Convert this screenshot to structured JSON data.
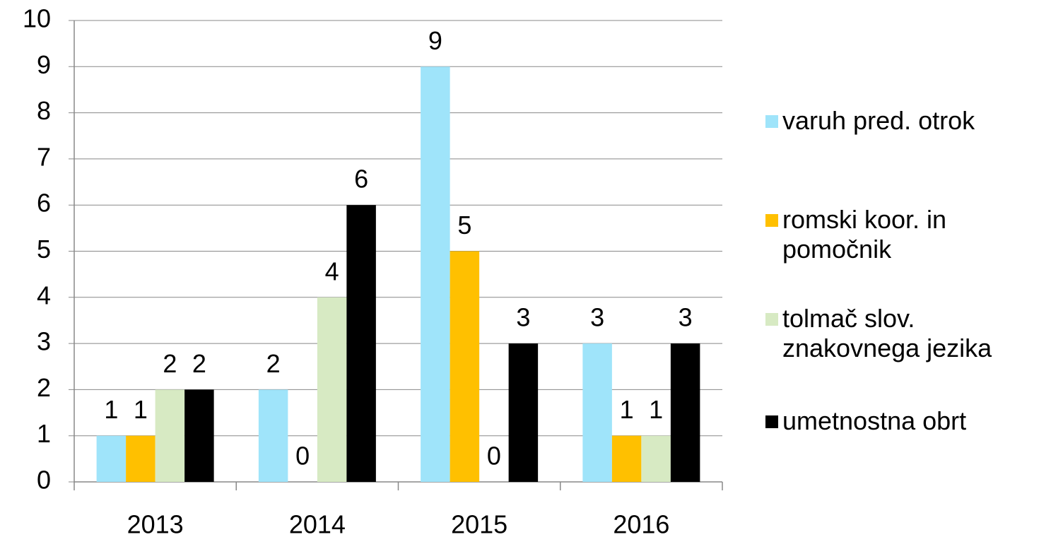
{
  "chart_data": {
    "type": "bar",
    "categories": [
      "2013",
      "2014",
      "2015",
      "2016"
    ],
    "series": [
      {
        "name": "varuh pred. otrok",
        "color": "#9fe4fa",
        "values": [
          1,
          2,
          9,
          3
        ]
      },
      {
        "name": "romski koor. in pomočnik",
        "color": "#ffc000",
        "values": [
          1,
          0,
          5,
          1
        ]
      },
      {
        "name": "tolmač slov. znakovnega jezika",
        "color": "#d7eac3",
        "values": [
          2,
          4,
          0,
          1
        ]
      },
      {
        "name": "umetnostna obrt",
        "color": "#000000",
        "values": [
          2,
          6,
          3,
          3
        ]
      }
    ],
    "ylim": [
      0,
      10
    ],
    "yticks": [
      0,
      1,
      2,
      3,
      4,
      5,
      6,
      7,
      8,
      9,
      10
    ],
    "grid": true,
    "legend": "right"
  }
}
